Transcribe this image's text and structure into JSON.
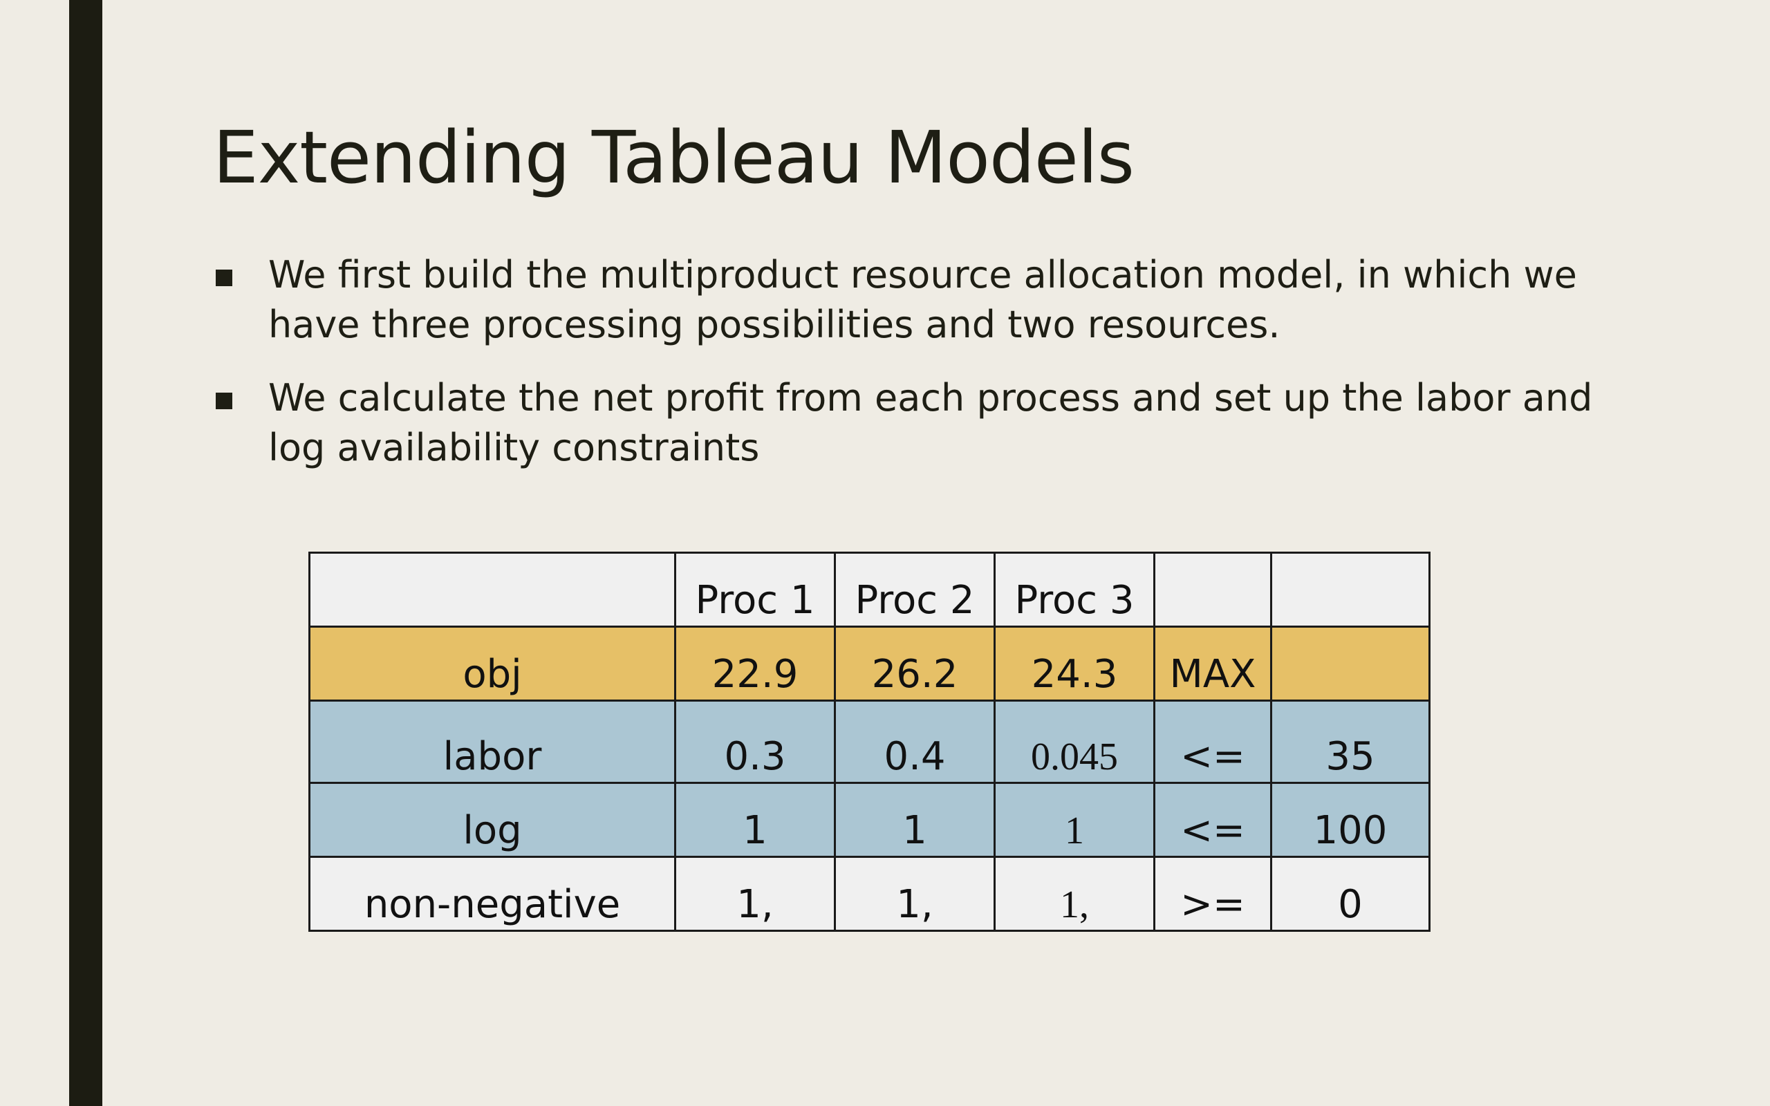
{
  "slide": {
    "title": "Extending Tableau Models",
    "bullets": [
      "We first build the multiproduct  resource allocation model, in which we have three processing possibilities and two resources.",
      "We calculate the net profit from each process and set up the labor and log availability constraints"
    ]
  },
  "table": {
    "header": [
      "",
      "Proc 1",
      "Proc 2",
      "Proc 3",
      "",
      ""
    ],
    "rows": [
      {
        "name": "obj",
        "cells": [
          "obj",
          "22.9",
          "26.2",
          "24.3",
          "MAX",
          ""
        ]
      },
      {
        "name": "labor",
        "cells": [
          "labor",
          "0.3",
          "0.4",
          "0.045",
          "<=",
          "35"
        ]
      },
      {
        "name": "log",
        "cells": [
          "log",
          "1",
          "1",
          "1",
          "<=",
          "100"
        ]
      },
      {
        "name": "non-negative",
        "cells": [
          "non-negative",
          "1,",
          "1,",
          "1,",
          ">=",
          "0"
        ]
      }
    ]
  },
  "colors": {
    "background": "#efece4",
    "left_bar": "#1c1c12",
    "objective_row": "#e6c067",
    "constraint_rows": "#abc6d3",
    "plain_rows": "#f0f0f0"
  }
}
